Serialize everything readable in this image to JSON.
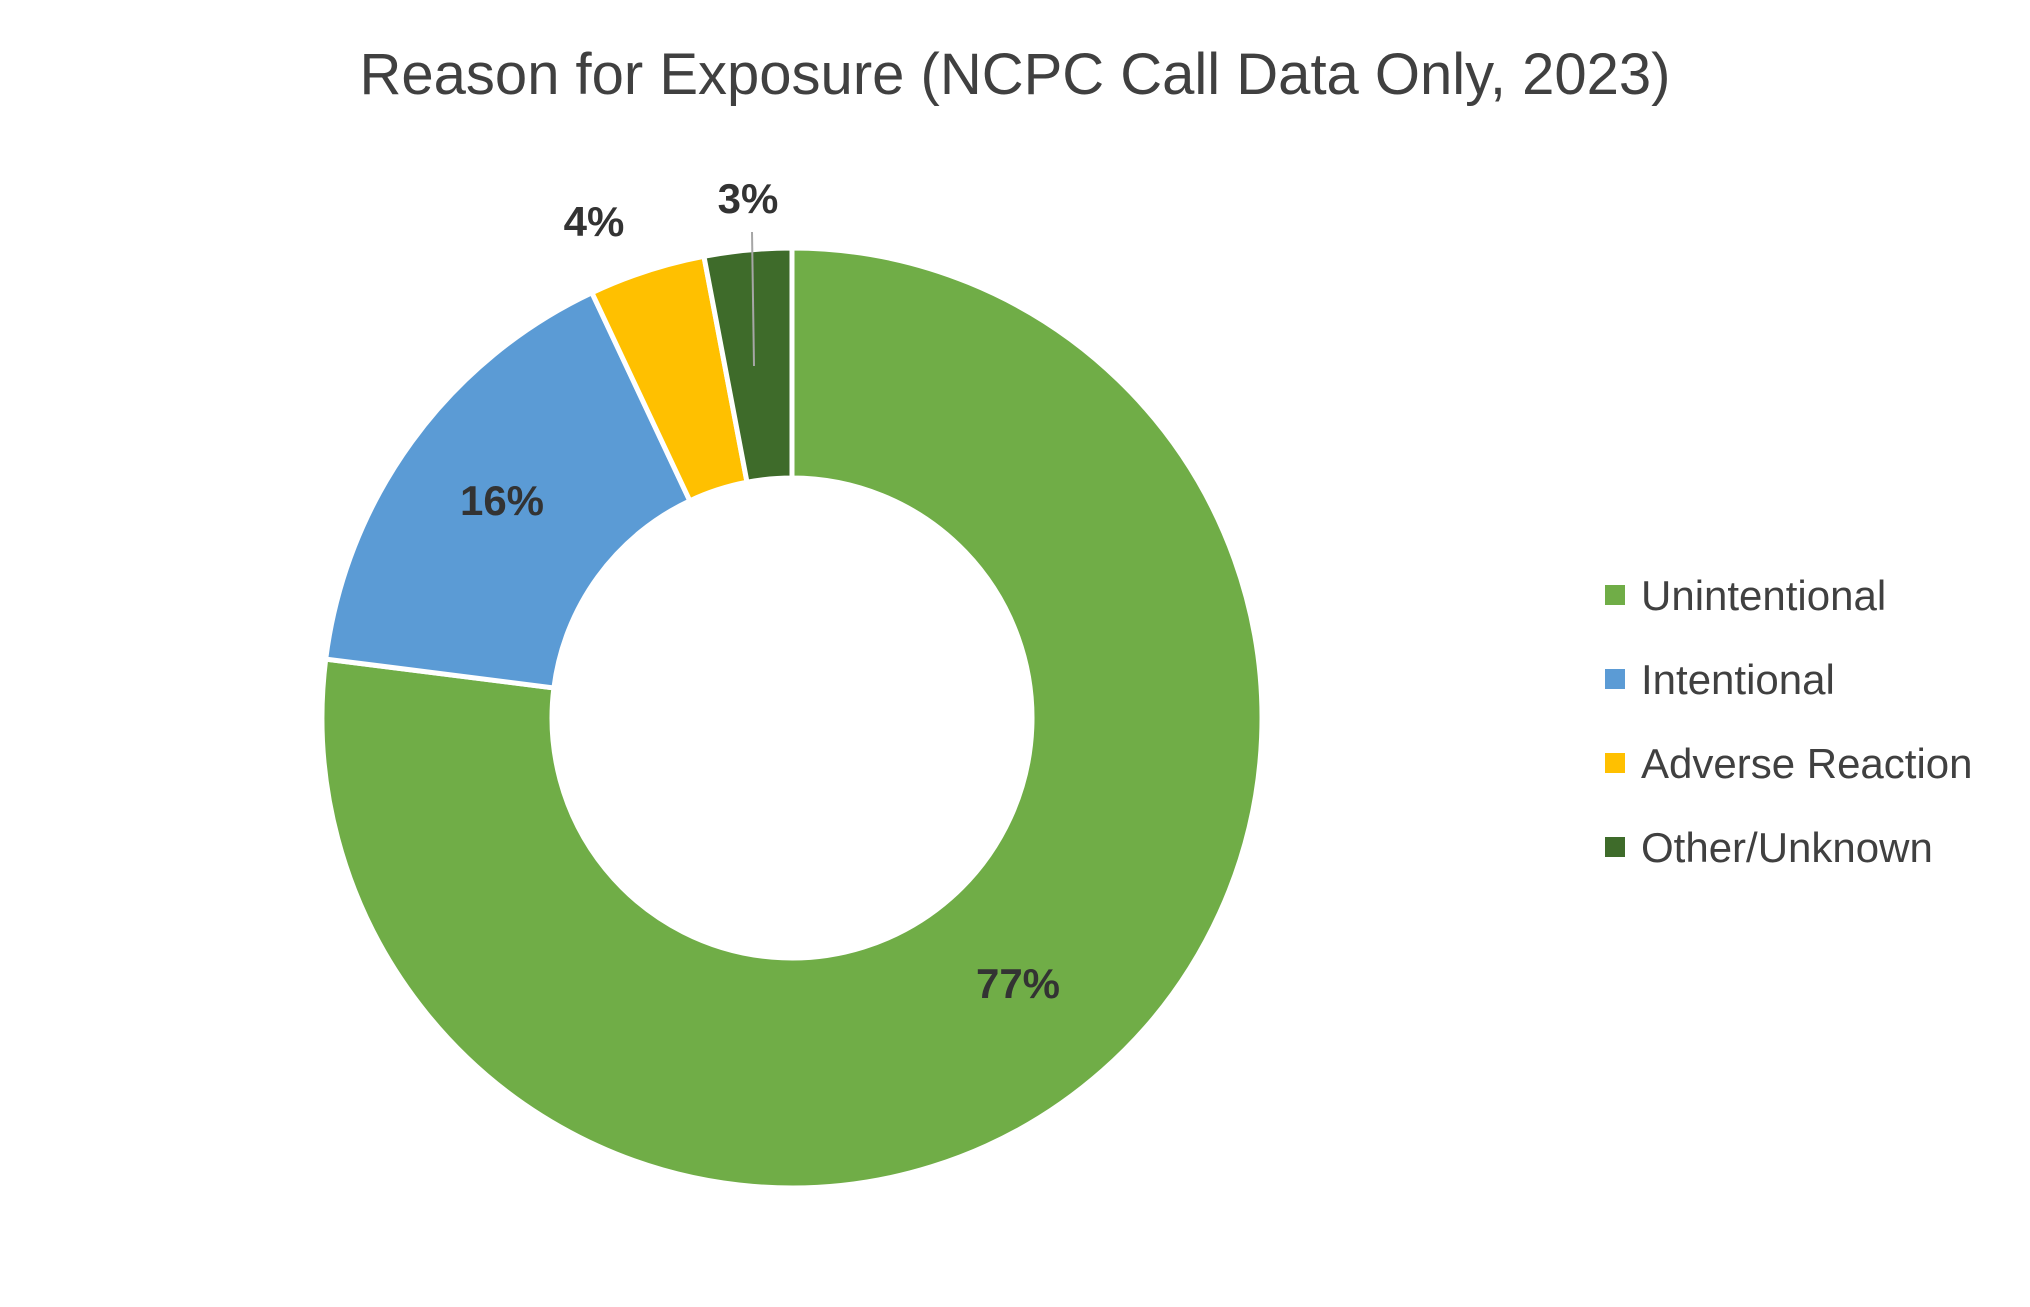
{
  "chart_data": {
    "type": "pie",
    "title": "Reason for Exposure (NCPC Call Data Only, 2023)",
    "categories": [
      "Unintentional",
      "Intentional",
      "Adverse Reaction",
      "Other/Unknown"
    ],
    "values": [
      77,
      16,
      4,
      3
    ],
    "labels": [
      "77%",
      "16%",
      "4%",
      "3%"
    ],
    "colors": [
      "#70AD47",
      "#5B9BD5",
      "#FFC000",
      "#3E6B2A"
    ],
    "donut": true,
    "legend_position": "right"
  }
}
